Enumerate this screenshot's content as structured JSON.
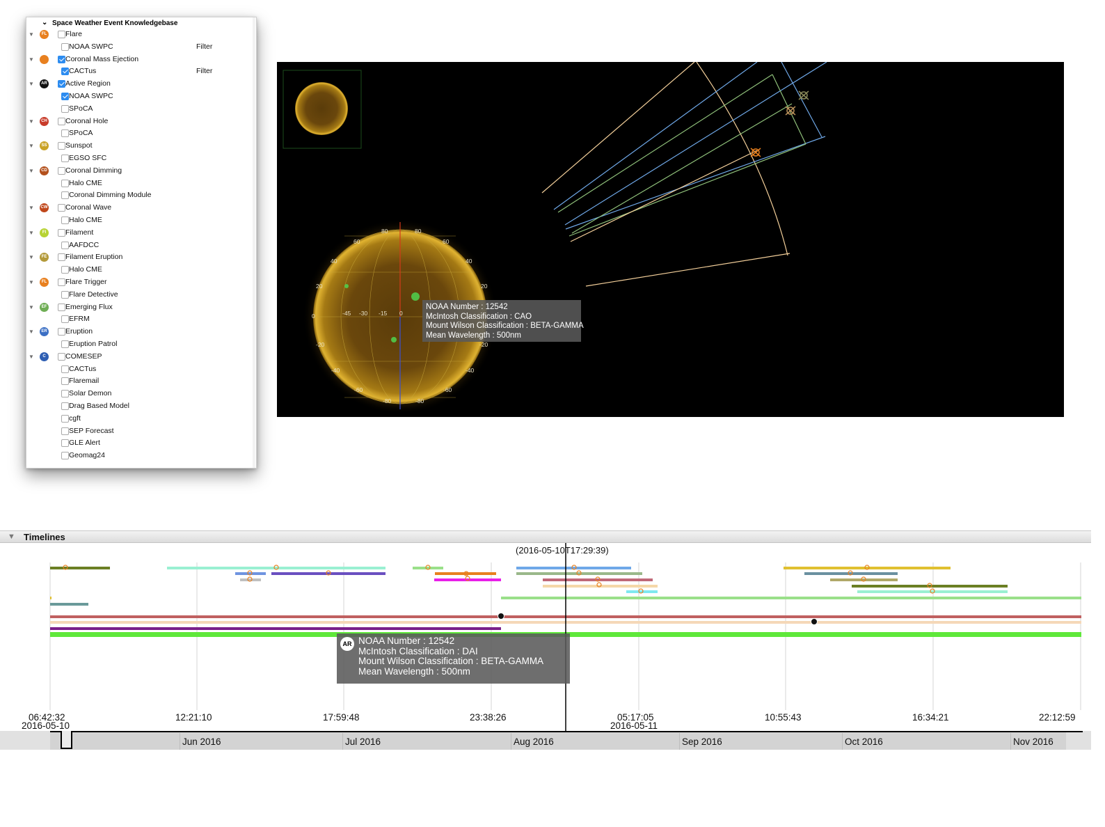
{
  "knowledgebase": {
    "title": "Space Weather Event Knowledgebase",
    "filter_label": "Filter",
    "rows": [
      {
        "type": "parent",
        "label": "Flare",
        "icon": "flare-icon",
        "icon_text": "FL",
        "color": "#e8801f",
        "checked": false
      },
      {
        "type": "child",
        "label": "NOAA SWPC",
        "checked": false,
        "filter": true
      },
      {
        "type": "parent",
        "label": "Coronal Mass Ejection",
        "icon": "cme-icon",
        "icon_text": "",
        "color": "#e8801f",
        "checked": true
      },
      {
        "type": "child",
        "label": "CACTus",
        "checked": true,
        "filter": true
      },
      {
        "type": "parent",
        "label": "Active Region",
        "icon": "active-region-icon",
        "icon_text": "AR",
        "color": "#111111",
        "checked": true
      },
      {
        "type": "child",
        "label": "NOAA SWPC",
        "checked": true
      },
      {
        "type": "child",
        "label": "SPoCA",
        "checked": false
      },
      {
        "type": "parent",
        "label": "Coronal Hole",
        "icon": "coronal-hole-icon",
        "icon_text": "CH",
        "color": "#c83b2a",
        "checked": false
      },
      {
        "type": "child",
        "label": "SPoCA",
        "checked": false
      },
      {
        "type": "parent",
        "label": "Sunspot",
        "icon": "sunspot-icon",
        "icon_text": "SS",
        "color": "#c9a227",
        "checked": false
      },
      {
        "type": "child",
        "label": "EGSO SFC",
        "checked": false
      },
      {
        "type": "parent",
        "label": "Coronal Dimming",
        "icon": "coronal-dimming-icon",
        "icon_text": "CD",
        "color": "#b3501c",
        "checked": false
      },
      {
        "type": "child",
        "label": "Halo CME",
        "checked": false
      },
      {
        "type": "child",
        "label": "Coronal Dimming Module",
        "checked": false
      },
      {
        "type": "parent",
        "label": "Coronal Wave",
        "icon": "coronal-wave-icon",
        "icon_text": "CW",
        "color": "#c0471b",
        "checked": false
      },
      {
        "type": "child",
        "label": "Halo CME",
        "checked": false
      },
      {
        "type": "parent",
        "label": "Filament",
        "icon": "filament-icon",
        "icon_text": "FI",
        "color": "#b7d334",
        "checked": false
      },
      {
        "type": "child",
        "label": "AAFDCC",
        "checked": false
      },
      {
        "type": "parent",
        "label": "Filament Eruption",
        "icon": "filament-eruption-icon",
        "icon_text": "FE",
        "color": "#b39a3a",
        "checked": false
      },
      {
        "type": "child",
        "label": "Halo CME",
        "checked": false
      },
      {
        "type": "parent",
        "label": "Flare Trigger",
        "icon": "flare-trigger-icon",
        "icon_text": "FL",
        "color": "#e8801f",
        "checked": false
      },
      {
        "type": "child",
        "label": "Flare Detective",
        "checked": false
      },
      {
        "type": "parent",
        "label": "Emerging Flux",
        "icon": "emerging-flux-icon",
        "icon_text": "EF",
        "color": "#6fae55",
        "checked": false
      },
      {
        "type": "child",
        "label": "EFRM",
        "checked": false
      },
      {
        "type": "parent",
        "label": "Eruption",
        "icon": "eruption-icon",
        "icon_text": "ER",
        "color": "#3b6fc4",
        "checked": false
      },
      {
        "type": "child",
        "label": "Eruption Patrol",
        "checked": false
      },
      {
        "type": "parent",
        "label": "COMESEP",
        "icon": "comesep-icon",
        "icon_text": "C",
        "color": "#2f5fb3",
        "checked": false
      },
      {
        "type": "child",
        "label": "CACTus",
        "checked": false
      },
      {
        "type": "child",
        "label": "Flaremail",
        "checked": false
      },
      {
        "type": "child",
        "label": "Solar Demon",
        "checked": false
      },
      {
        "type": "child",
        "label": "Drag Based Model",
        "checked": false
      },
      {
        "type": "child",
        "label": "cgft",
        "checked": false
      },
      {
        "type": "child",
        "label": "SEP Forecast",
        "checked": false
      },
      {
        "type": "child",
        "label": "GLE Alert",
        "checked": false
      },
      {
        "type": "child",
        "label": "Geomag24",
        "checked": false
      }
    ]
  },
  "sun_view": {
    "grid_labels_top": [
      "80",
      "80",
      "60",
      "60",
      "40",
      "40",
      "20",
      "20"
    ],
    "grid_labels_bottom": [
      "-20",
      "-20",
      "-40",
      "-40",
      "-60",
      "-60",
      "-80",
      "-80"
    ],
    "grid_labels_mid": [
      "0",
      "-45",
      "-30",
      "-15",
      "0"
    ],
    "tooltip": {
      "line1": "NOAA Number : 12542",
      "line2": "McIntosh Classification : CAO",
      "line3": "Mount Wilson Classification : BETA-GAMMA",
      "line4": "Mean Wavelength : 500nm"
    }
  },
  "timelines": {
    "title": "Timelines",
    "current_time": "(2016-05-10T17:29:39)",
    "tick_labels": [
      "06:42:32",
      "12:21:10",
      "17:59:48",
      "23:38:26",
      "05:17:05",
      "10:55:43",
      "16:34:21",
      "22:12:59"
    ],
    "date_labels": [
      "2016-05-10",
      "2016-05-11"
    ],
    "tooltip": {
      "icon_text": "AR",
      "line1": "NOAA Number : 12542",
      "line2": "McIntosh Classification : DAI",
      "line3": "Mount Wilson Classification : BETA-GAMMA",
      "line4": "Mean Wavelength : 500nm"
    },
    "months": [
      "Jun 2016",
      "Jul 2016",
      "Aug 2016",
      "Sep 2016",
      "Oct 2016",
      "Nov 2016"
    ]
  }
}
